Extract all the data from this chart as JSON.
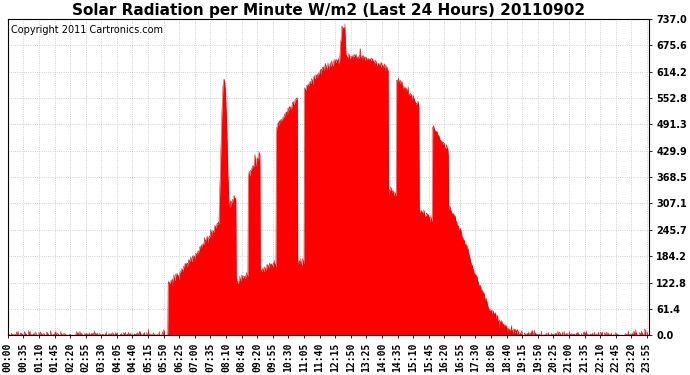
{
  "title": "Solar Radiation per Minute W/m2 (Last 24 Hours) 20110902",
  "copyright": "Copyright 2011 Cartronics.com",
  "y_max": 737.0,
  "y_min": 0.0,
  "y_ticks": [
    0.0,
    61.4,
    122.8,
    184.2,
    245.7,
    307.1,
    368.5,
    429.9,
    491.3,
    552.8,
    614.2,
    675.6,
    737.0
  ],
  "fill_color": "#FF0000",
  "line_color": "#CC0000",
  "background_color": "#FFFFFF",
  "grid_color": "#AAAAAA",
  "dashed_line_color": "#FF0000",
  "title_fontsize": 11,
  "copyright_fontsize": 7,
  "tick_fontsize": 7,
  "tick_interval_minutes": 35,
  "total_minutes": 1440
}
